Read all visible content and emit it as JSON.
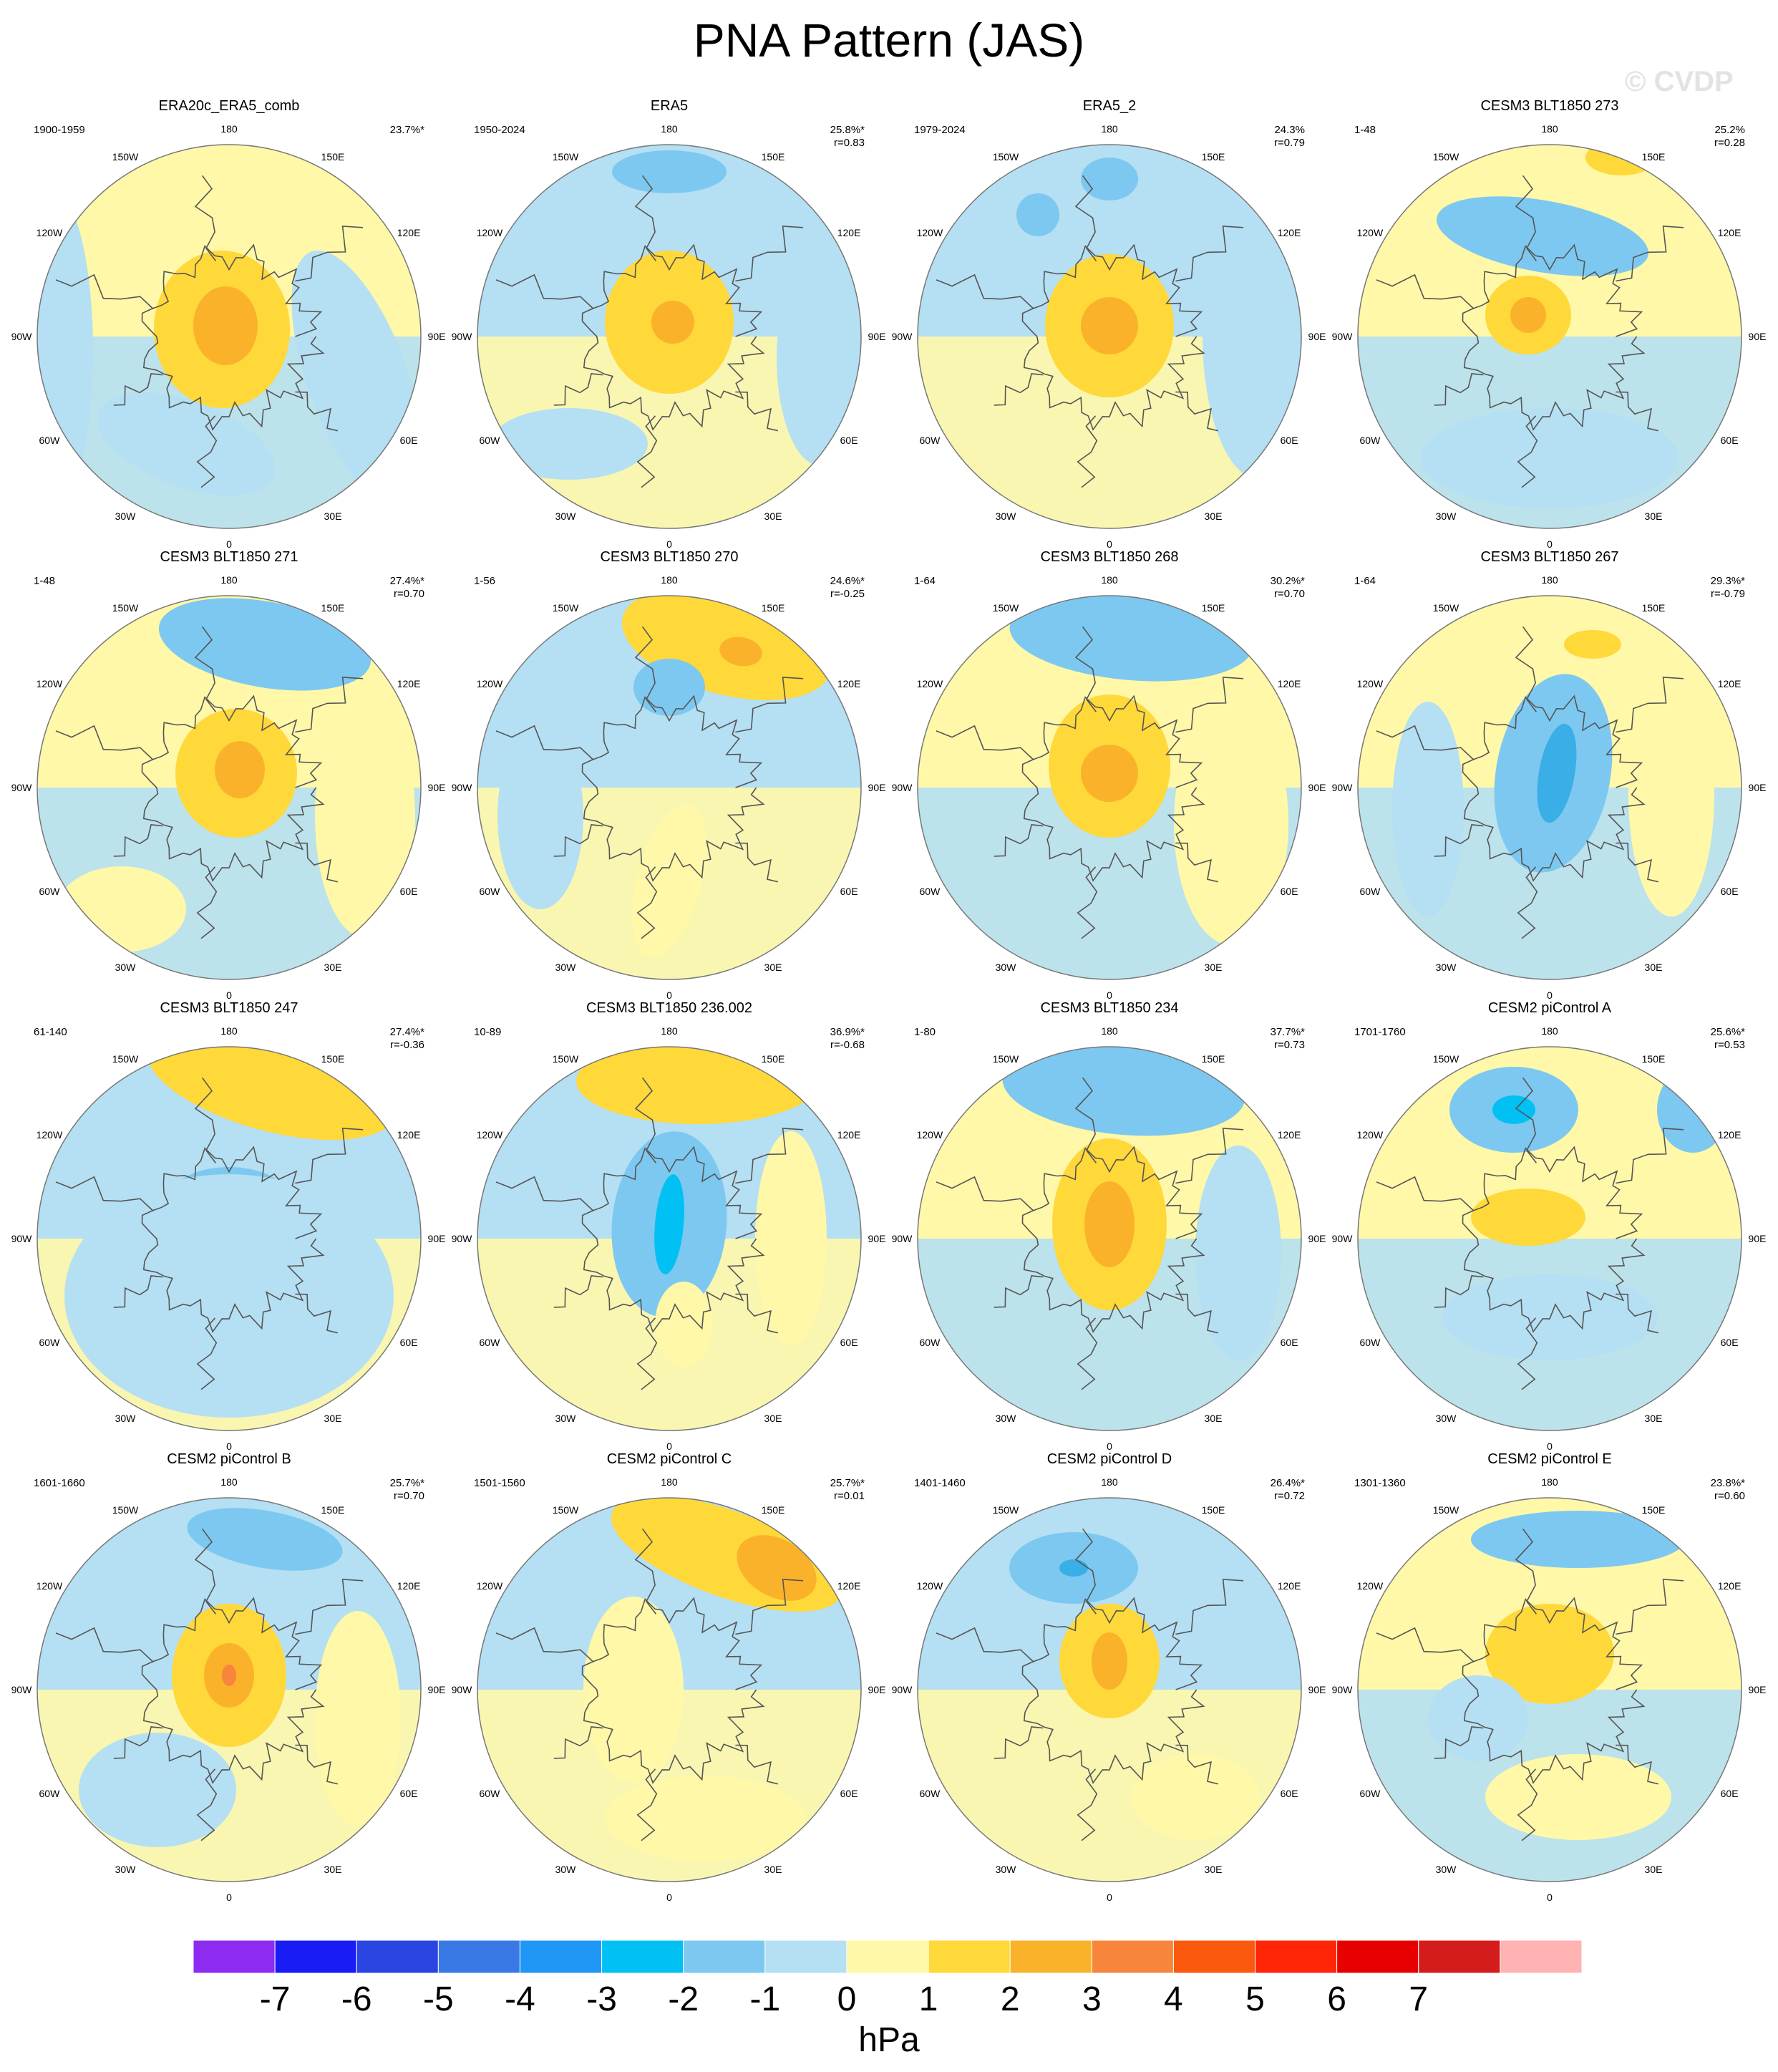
{
  "title": "PNA Pattern (JAS)",
  "watermark": "© CVDP",
  "colors": {
    "ocean_negative_1": "#b5dff3",
    "land_positive_1": "#fff8a8",
    "pos2": "#ffd83a",
    "pos3": "#fbb22b",
    "pos4": "#f7853b",
    "neg2": "#7dc8f0",
    "neg3": "#3aaee6",
    "neg4": "#00c0f4",
    "coast": "#555555"
  },
  "lon_labels": [
    "180",
    "150E",
    "120E",
    "90E",
    "60E",
    "30E",
    "0",
    "30W",
    "60W",
    "90W",
    "120W",
    "150W"
  ],
  "panels": [
    {
      "name": "ERA20c_ERA5_comb",
      "period": "1900-1959",
      "pct": "23.7%*",
      "r": ""
    },
    {
      "name": "ERA5",
      "period": "1950-2024",
      "pct": "25.8%*",
      "r": "r=0.83"
    },
    {
      "name": "ERA5_2",
      "period": "1979-2024",
      "pct": "24.3%",
      "r": "r=0.79"
    },
    {
      "name": "CESM3 BLT1850 273",
      "period": "1-48",
      "pct": "25.2%",
      "r": "r=0.28"
    },
    {
      "name": "CESM3 BLT1850 271",
      "period": "1-48",
      "pct": "27.4%*",
      "r": "r=0.70"
    },
    {
      "name": "CESM3 BLT1850 270",
      "period": "1-56",
      "pct": "24.6%*",
      "r": "r=-0.25"
    },
    {
      "name": "CESM3 BLT1850 268",
      "period": "1-64",
      "pct": "30.2%*",
      "r": "r=0.70"
    },
    {
      "name": "CESM3 BLT1850 267",
      "period": "1-64",
      "pct": "29.3%*",
      "r": "r=-0.79"
    },
    {
      "name": "CESM3 BLT1850 247",
      "period": "61-140",
      "pct": "27.4%*",
      "r": "r=-0.36"
    },
    {
      "name": "CESM3 BLT1850 236.002",
      "period": "10-89",
      "pct": "36.9%*",
      "r": "r=-0.68"
    },
    {
      "name": "CESM3 BLT1850 234",
      "period": "1-80",
      "pct": "37.7%*",
      "r": "r=0.73"
    },
    {
      "name": "CESM2 piControl A",
      "period": "1701-1760",
      "pct": "25.6%*",
      "r": "r=0.53"
    },
    {
      "name": "CESM2 piControl B",
      "period": "1601-1660",
      "pct": "25.7%*",
      "r": "r=0.70"
    },
    {
      "name": "CESM2 piControl C",
      "period": "1501-1560",
      "pct": "25.7%*",
      "r": "r=0.01"
    },
    {
      "name": "CESM2 piControl D",
      "period": "1401-1460",
      "pct": "26.4%*",
      "r": "r=0.72"
    },
    {
      "name": "CESM2 piControl E",
      "period": "1301-1360",
      "pct": "23.8%*",
      "r": "r=0.60"
    }
  ],
  "colorbar": {
    "colors": [
      "#8d2bf0",
      "#1a1cf6",
      "#2b45e2",
      "#3879e6",
      "#1e97f7",
      "#00c0f4",
      "#7dc8f0",
      "#b5dff3",
      "#fff8a8",
      "#ffd83a",
      "#fbb22b",
      "#f7853b",
      "#fb5a0e",
      "#ff2607",
      "#e60000",
      "#d51c1c",
      "#ffb3b3"
    ],
    "labels": [
      "-7",
      "-6",
      "-5",
      "-4",
      "-3",
      "-2",
      "-1",
      "0",
      "1",
      "2",
      "3",
      "4",
      "5",
      "6",
      "7"
    ]
  },
  "units": "hPa"
}
